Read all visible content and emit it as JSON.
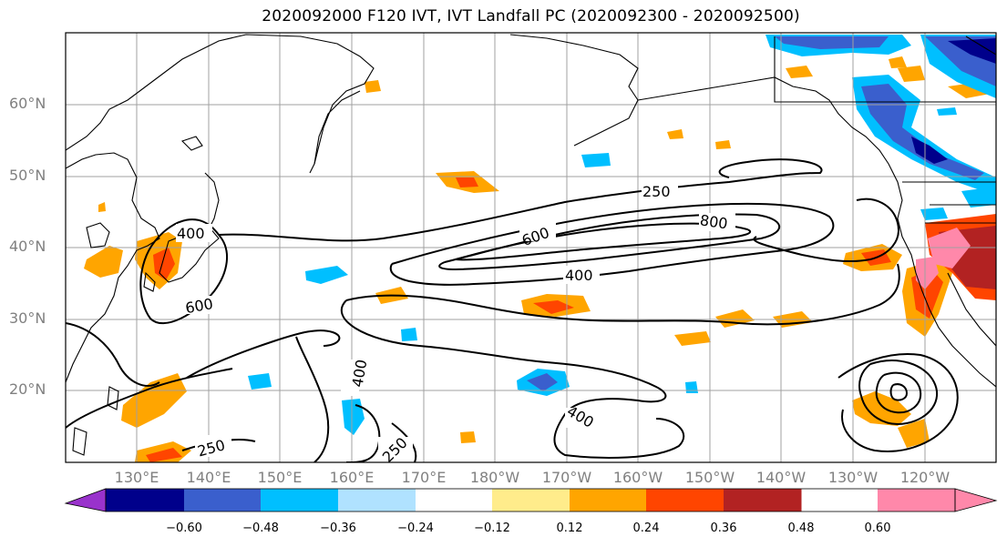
{
  "title": "2020092000 F120 IVT, IVT Landfall PC (2020092300 - 2020092500)",
  "lat_labels": [
    "60°N",
    "50°N",
    "40°N",
    "30°N",
    "20°N"
  ],
  "lon_labels": [
    "130°E",
    "140°E",
    "150°E",
    "160°E",
    "170°E",
    "180°W",
    "170°W",
    "160°W",
    "150°W",
    "140°W",
    "130°W",
    "120°W"
  ],
  "contour_labels": [
    "250",
    "800",
    "600",
    "400",
    "400",
    "600",
    "400",
    "250",
    "250",
    "400"
  ],
  "colorbar": {
    "tick_labels": [
      "−0.60",
      "−0.48",
      "−0.36",
      "−0.24",
      "−0.12",
      "0.12",
      "0.24",
      "0.36",
      "0.48",
      "0.60"
    ],
    "colors": [
      "#9932cc",
      "#00008b",
      "#3a5fcd",
      "#00bfff",
      "#b0e2ff",
      "#ffffff",
      "#ffec8b",
      "#ffa500",
      "#ff4500",
      "#b22222",
      "#ff88aa"
    ]
  }
}
